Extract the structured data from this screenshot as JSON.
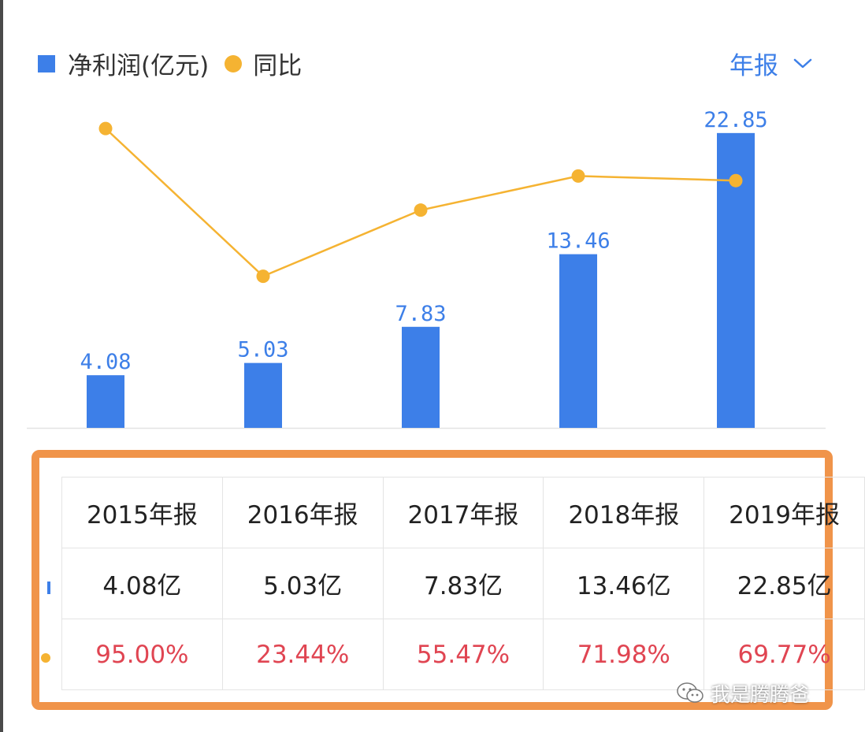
{
  "legend": {
    "series1": "净利润(亿元)",
    "series2": "同比"
  },
  "period_selector": {
    "label": "年报"
  },
  "colors": {
    "bar": "#3d7fe8",
    "line": "#f5b332",
    "label": "#3d7fe8",
    "yoy_text": "#e04552",
    "frame": "#f0944a"
  },
  "chart_data": {
    "type": "bar",
    "categories": [
      "2015年报",
      "2016年报",
      "2017年报",
      "2018年报",
      "2019年报"
    ],
    "series": [
      {
        "name": "净利润(亿元)",
        "type": "bar",
        "values": [
          4.08,
          5.03,
          7.83,
          13.46,
          22.85
        ]
      },
      {
        "name": "同比",
        "type": "line",
        "values": [
          95.0,
          23.44,
          55.47,
          71.98,
          69.77
        ]
      }
    ],
    "data_labels": [
      "4.08",
      "5.03",
      "7.83",
      "13.46",
      "22.85"
    ],
    "ylim": [
      0,
      24
    ],
    "y2lim": [
      -50,
      100
    ],
    "grid": false,
    "legend": "top-left"
  },
  "table": {
    "headers": [
      "2015年报",
      "2016年报",
      "2017年报",
      "2018年报",
      "2019年报"
    ],
    "net_profit": [
      "4.08亿",
      "5.03亿",
      "7.83亿",
      "13.46亿",
      "22.85亿"
    ],
    "yoy": [
      "95.00%",
      "23.44%",
      "55.47%",
      "71.98%",
      "69.77%"
    ]
  },
  "watermark": {
    "text": "我是腾腾爸",
    "icon": "wechat-icon"
  }
}
